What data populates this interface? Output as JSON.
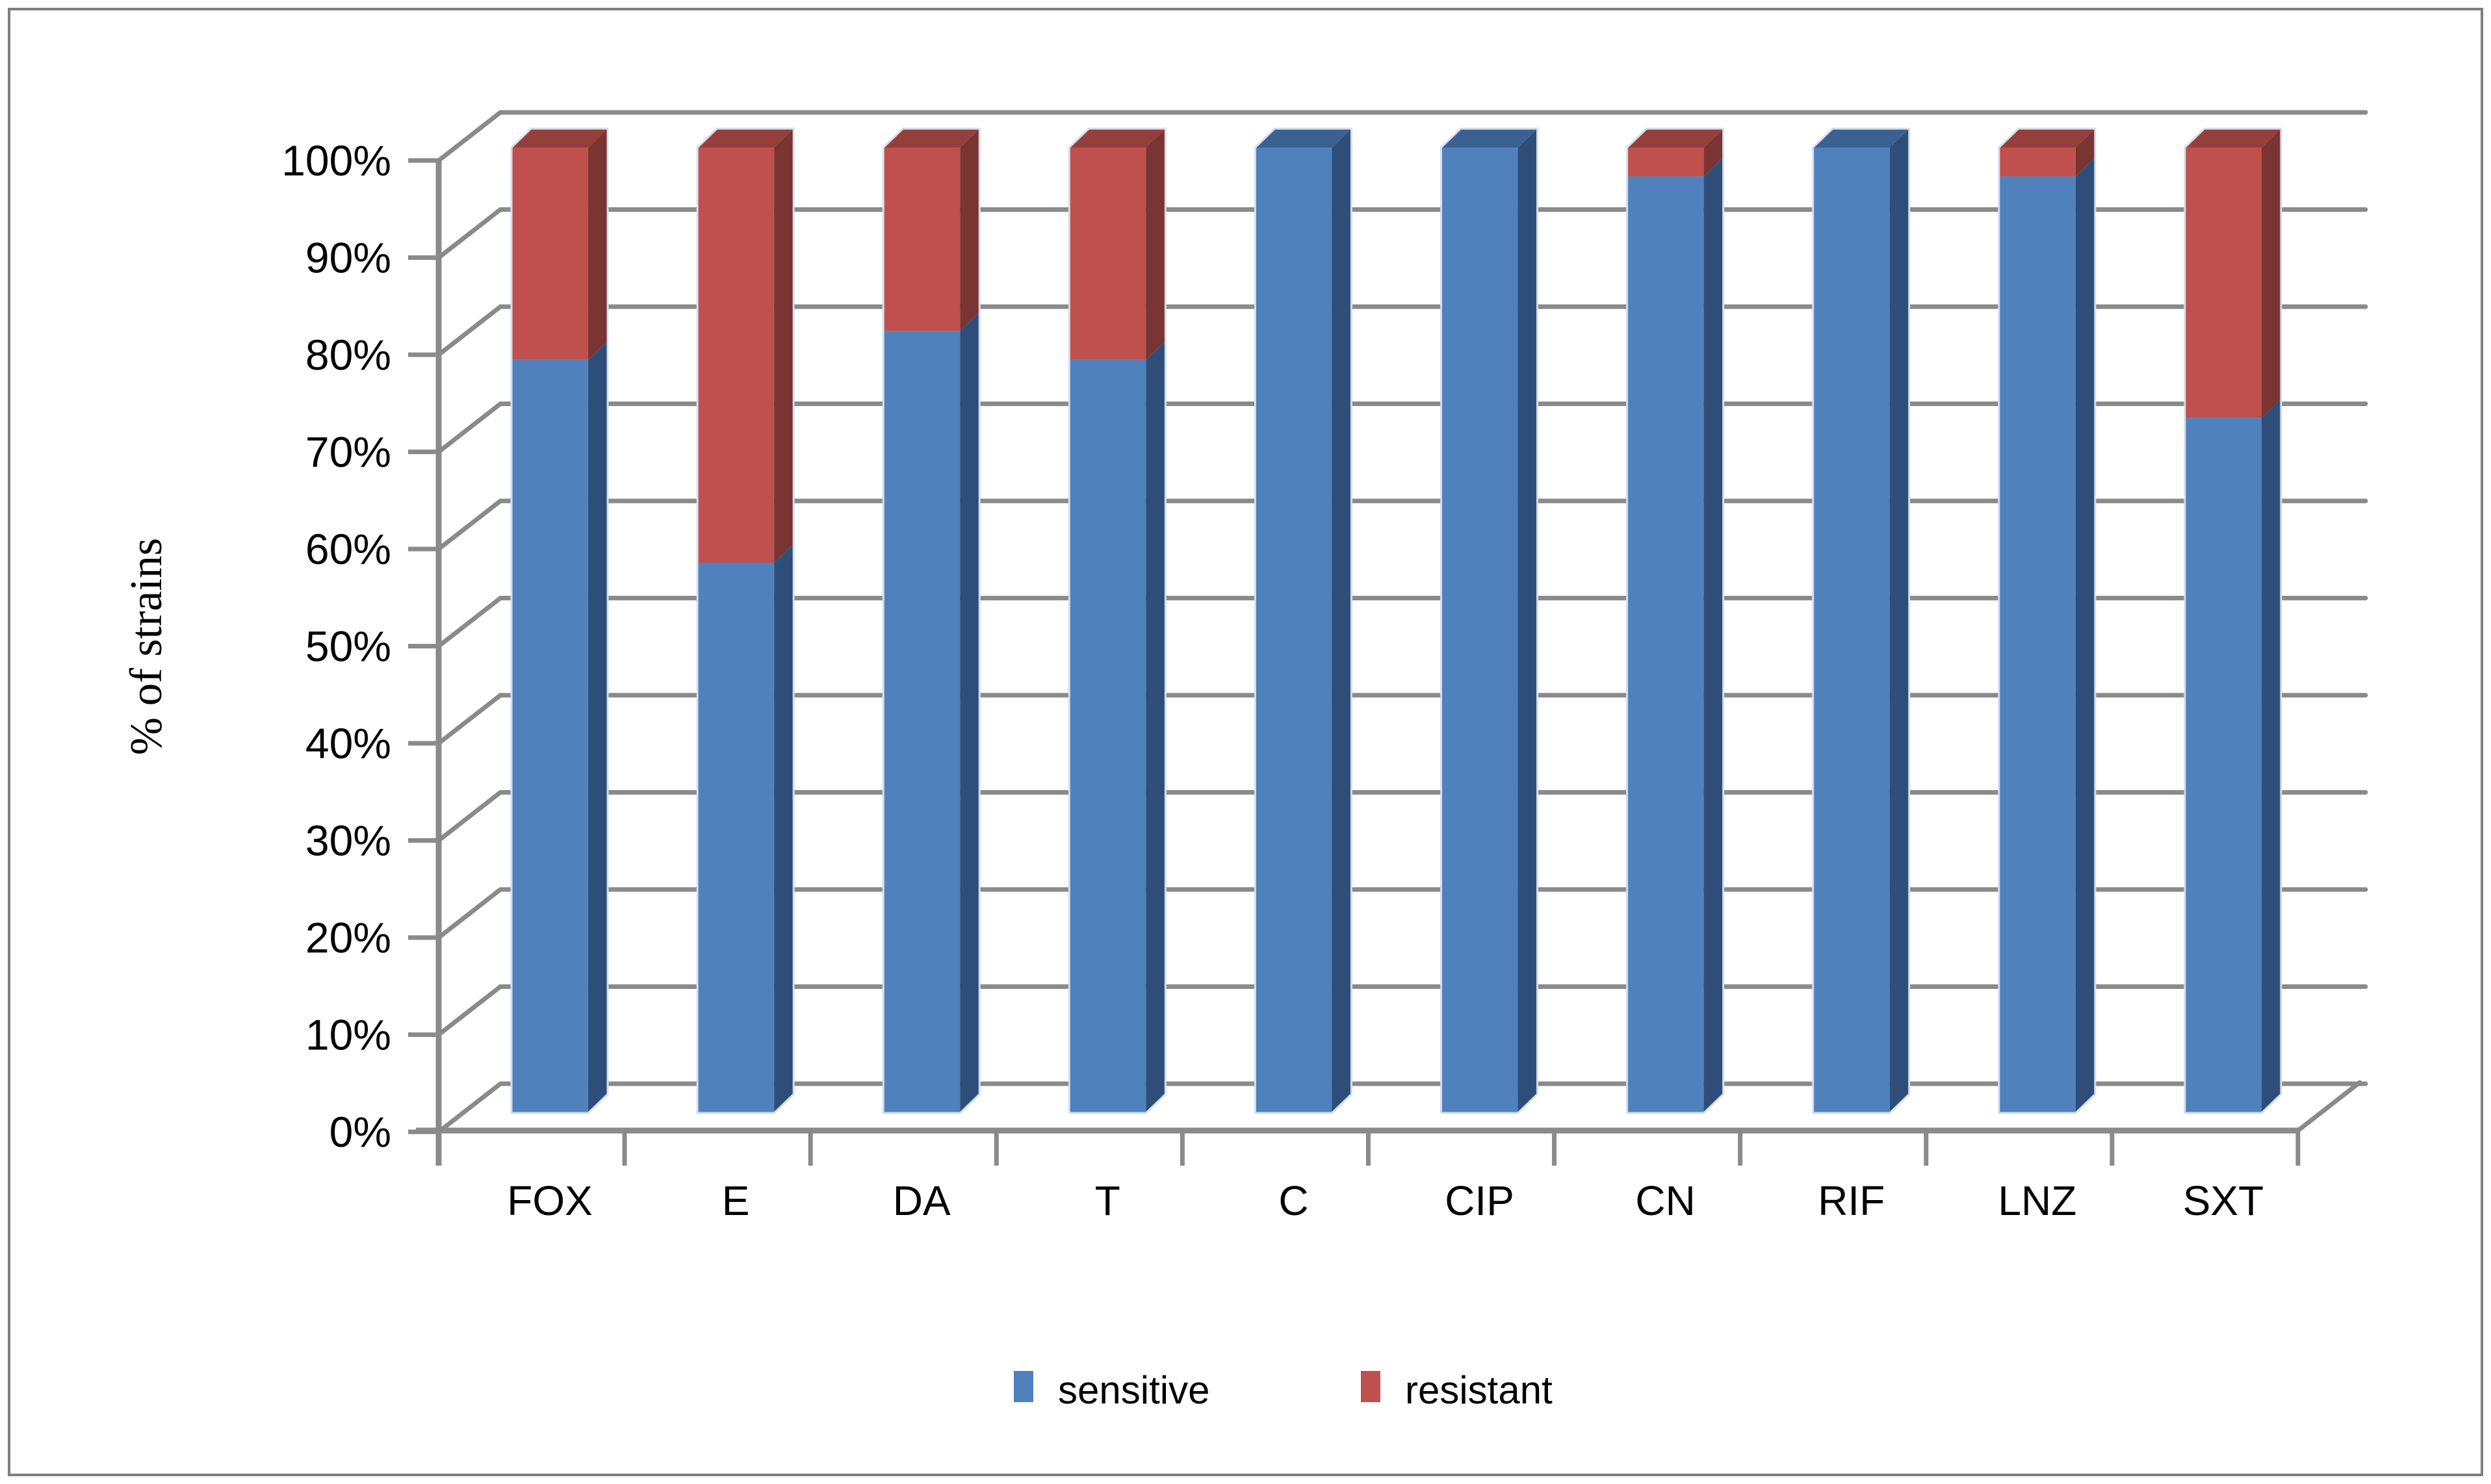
{
  "figure": {
    "background": "#ffffff",
    "border_color": "#7f7f7f"
  },
  "chart_data": {
    "type": "bar",
    "subtype": "stacked-100-percent-3d-column",
    "title": "",
    "xlabel": "",
    "ylabel": "% of strains",
    "ylim": [
      0,
      100
    ],
    "grid": "horizontal",
    "legend_position": "bottom",
    "y_ticks": [
      "100%",
      "90%",
      "80%",
      "70%",
      "60%",
      "50%",
      "40%",
      "30%",
      "20%",
      "10%",
      "0%"
    ],
    "categories": [
      "FOX",
      "E",
      "DA",
      "T",
      "C",
      "CIP",
      "CN",
      "RIF",
      "LNZ",
      "SXT"
    ],
    "series": [
      {
        "name": "sensitive",
        "color": "#4f81bd",
        "color_side": "#2e4e79",
        "color_top": "#3a6191",
        "values": [
          78,
          57,
          81,
          78,
          100,
          100,
          97,
          100,
          97,
          72
        ]
      },
      {
        "name": "resistant",
        "color": "#c0504d",
        "color_side": "#7a3431",
        "color_top": "#943f3b",
        "values": [
          22,
          43,
          19,
          22,
          0,
          0,
          3,
          0,
          3,
          28
        ]
      }
    ],
    "colors": {
      "gridline": "#8a8a8a",
      "axis": "#8a8a8a",
      "bar_halo": "#d5deec",
      "text": "#000000"
    }
  }
}
